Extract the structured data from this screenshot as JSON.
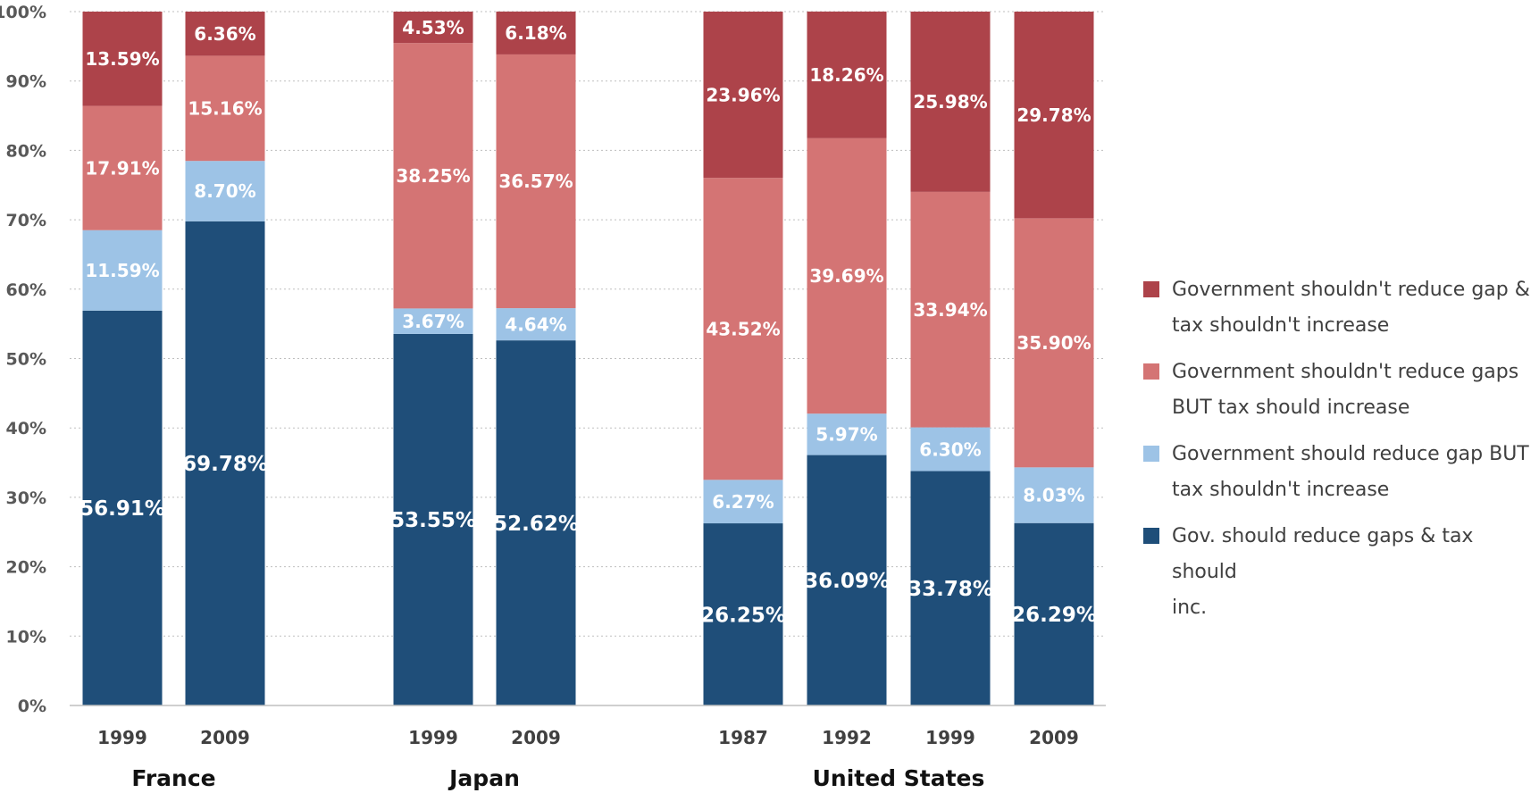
{
  "chart_data": {
    "type": "bar",
    "stacked": true,
    "ylim": [
      0,
      100
    ],
    "y_ticks": [
      "0%",
      "10%",
      "20%",
      "30%",
      "40%",
      "50%",
      "60%",
      "70%",
      "80%",
      "90%",
      "100%"
    ],
    "grid": true,
    "legend_position": "right",
    "groups": [
      {
        "name": "France",
        "categories": [
          "1999",
          "2009"
        ]
      },
      {
        "name": "Japan",
        "categories": [
          "1999",
          "2009"
        ]
      },
      {
        "name": "United States",
        "categories": [
          "1987",
          "1992",
          "1999",
          "2009"
        ]
      }
    ],
    "series": [
      {
        "name": "Gov. should reduce gaps & tax should inc.",
        "color": "#1f4e79",
        "values": [
          56.91,
          69.78,
          53.55,
          52.62,
          26.25,
          36.09,
          33.78,
          26.29
        ],
        "labels": [
          "56.91%",
          "69.78%",
          "53.55%",
          "52.62%",
          "26.25%",
          "36.09%",
          "33.78%",
          "26.29%"
        ]
      },
      {
        "name": "Government should reduce gap BUT tax shouldn't increase",
        "color": "#9dc3e6",
        "values": [
          11.59,
          8.7,
          3.67,
          4.64,
          6.27,
          5.97,
          6.3,
          8.03
        ],
        "labels": [
          "11.59%",
          "8.70%",
          "3.67%",
          "4.64%",
          "6.27%",
          "5.97%",
          "6.30%",
          "8.03%"
        ]
      },
      {
        "name": "Government shouldn't reduce gaps BUT tax should increase",
        "color": "#d47474",
        "values": [
          17.91,
          15.16,
          38.25,
          36.57,
          43.52,
          39.69,
          33.94,
          35.9
        ],
        "labels": [
          "17.91%",
          "15.16%",
          "38.25%",
          "36.57%",
          "43.52%",
          "39.69%",
          "33.94%",
          "35.90%"
        ]
      },
      {
        "name": "Government shouldn't reduce gap & tax shouldn't increase",
        "color": "#ad434a",
        "values": [
          13.59,
          6.36,
          4.53,
          6.18,
          23.96,
          18.26,
          25.98,
          29.78
        ],
        "labels": [
          "13.59%",
          "6.36%",
          "4.53%",
          "6.18%",
          "23.96%",
          "18.26%",
          "25.98%",
          "29.78%"
        ]
      }
    ]
  },
  "legend": {
    "items": [
      {
        "label_lines": [
          "Government shouldn't reduce gap &",
          "tax shouldn't increase"
        ],
        "color": "#ad434a"
      },
      {
        "label_lines": [
          "Government shouldn't reduce gaps",
          "BUT tax should increase"
        ],
        "color": "#d47474"
      },
      {
        "label_lines": [
          "Government should reduce gap BUT",
          "tax shouldn't increase"
        ],
        "color": "#9dc3e6"
      },
      {
        "label_lines": [
          "Gov. should reduce gaps & tax should",
          "inc."
        ],
        "color": "#1f4e79"
      }
    ]
  }
}
